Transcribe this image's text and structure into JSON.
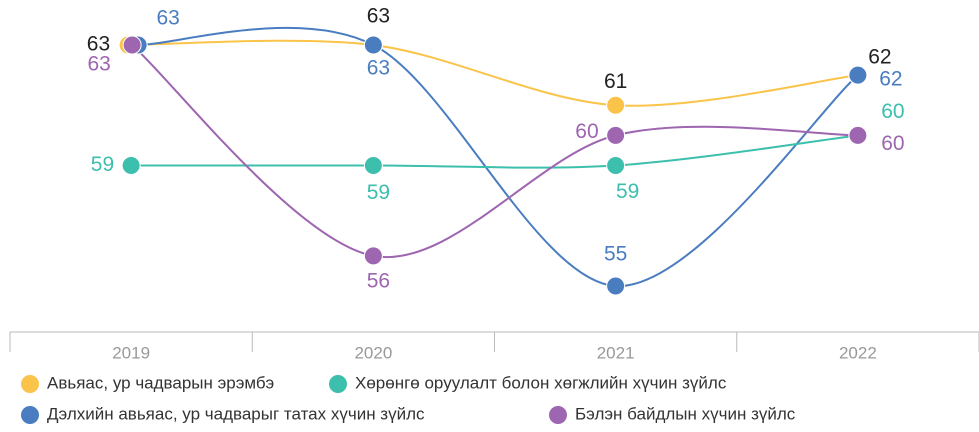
{
  "chart_data": {
    "type": "line",
    "categories": [
      "2019",
      "2020",
      "2021",
      "2022"
    ],
    "series": [
      {
        "name": "Авьяас, ур чадварын эрэмбэ",
        "color": "#f9c449",
        "values": [
          63,
          63,
          61,
          62
        ]
      },
      {
        "name": "Дэлхийн авьяас, ур чадварыг татах хүчин зүйлс",
        "color": "#4a7dc0",
        "values": [
          63,
          63,
          55,
          62
        ]
      },
      {
        "name": "Хөрөнгө оруулалт болон хөгжлийн хүчин зүйлс",
        "color": "#3dbfad",
        "values": [
          59,
          59,
          59,
          60
        ]
      },
      {
        "name": "Бэлэн байдлын хүчин зүйлс",
        "color": "#9e65b0",
        "values": [
          63,
          56,
          60,
          60
        ]
      }
    ],
    "legend": "bottom"
  }
}
